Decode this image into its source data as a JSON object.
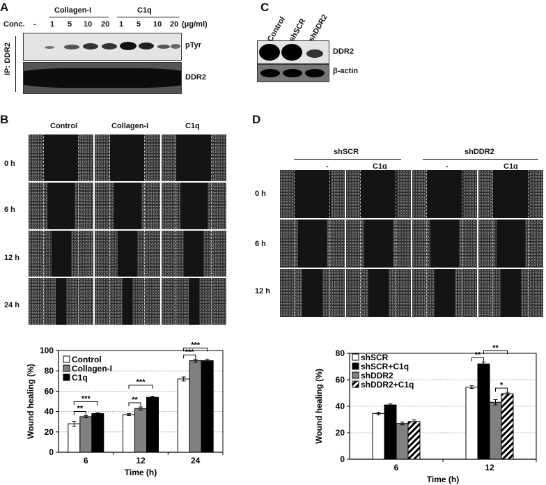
{
  "panels": {
    "a": "A",
    "b": "B",
    "c": "C",
    "d": "D"
  },
  "panel_a": {
    "conc_label": "Conc.",
    "groups": [
      "Collagen-I",
      "C1q"
    ],
    "conc_values": [
      "-",
      "1",
      "5",
      "10",
      "20",
      "1",
      "5",
      "10",
      "20"
    ],
    "unit": "(μg/ml)",
    "ip_label": "IP: DDR2",
    "blot_labels": [
      "pTyr",
      "DDR2"
    ]
  },
  "panel_c": {
    "lanes": [
      "Control",
      "shSCR",
      "shDDR2"
    ],
    "blot_labels": [
      "DDR2",
      "β-actin"
    ]
  },
  "panel_b": {
    "columns": [
      "Control",
      "Collagen-I",
      "C1q"
    ],
    "rows": [
      "0 h",
      "6 h",
      "12 h",
      "24 h"
    ]
  },
  "panel_d": {
    "groups": [
      "shSCR",
      "shDDR2"
    ],
    "subcolumns": [
      "-",
      "C1q",
      "-",
      "C1q"
    ],
    "rows": [
      "0 h",
      "6 h",
      "12 h"
    ]
  },
  "chart_data": [
    {
      "type": "bar",
      "panel": "B",
      "xlabel": "Time (h)",
      "ylabel": "Wound healing (%)",
      "ylim": [
        0,
        100
      ],
      "yticks": [
        "0",
        "20",
        "40",
        "60",
        "80",
        "100"
      ],
      "grid": "horizontal dotted",
      "legend_position": "top-left",
      "categories": [
        "6",
        "12",
        "24"
      ],
      "series": [
        {
          "name": "Control",
          "values": [
            28,
            37,
            72
          ],
          "errors": [
            2.5,
            1,
            2
          ],
          "color": "#ffffff"
        },
        {
          "name": "Collagen-I",
          "values": [
            35,
            43,
            90
          ],
          "errors": [
            1,
            1.5,
            1.5
          ],
          "color": "#808080"
        },
        {
          "name": "C1q",
          "values": [
            38,
            54,
            90
          ],
          "errors": [
            0.8,
            1,
            1.5
          ],
          "color": "#000000"
        }
      ],
      "annotations": [
        {
          "text": "***",
          "group": "6",
          "from": 0,
          "to": 2
        },
        {
          "text": "**",
          "group": "6",
          "from": 0,
          "to": 1
        },
        {
          "text": "***",
          "group": "12",
          "from": 0,
          "to": 2
        },
        {
          "text": "**",
          "group": "12",
          "from": 0,
          "to": 1
        },
        {
          "text": "***",
          "group": "24",
          "from": 0,
          "to": 2
        },
        {
          "text": "***",
          "group": "24",
          "from": 0,
          "to": 1
        }
      ]
    },
    {
      "type": "bar",
      "panel": "D",
      "xlabel": "Time (h)",
      "ylabel": "Wound healing (%)",
      "ylim": [
        0,
        80
      ],
      "yticks": [
        "0",
        "20",
        "40",
        "60",
        "80"
      ],
      "grid": "horizontal dotted",
      "legend_position": "top-left",
      "categories": [
        "6",
        "12"
      ],
      "series": [
        {
          "name": "shSCR",
          "values": [
            34.5,
            54.5
          ],
          "errors": [
            1,
            1
          ],
          "color": "#ffffff"
        },
        {
          "name": "shSCR+C1q",
          "values": [
            41,
            72
          ],
          "errors": [
            0.8,
            1.5
          ],
          "color": "#000000"
        },
        {
          "name": "shDDR2",
          "values": [
            27,
            43
          ],
          "errors": [
            1,
            2
          ],
          "color": "#808080"
        },
        {
          "name": "shDDR2+C1q",
          "values": [
            28.5,
            49.5
          ],
          "errors": [
            1.2,
            1
          ],
          "color": "hatched"
        }
      ],
      "annotations": [
        {
          "text": "**",
          "group": "12",
          "from": 0,
          "to": 1
        },
        {
          "text": "**",
          "group": "12",
          "from": 1,
          "to": 3
        },
        {
          "text": "*",
          "group": "12",
          "from": 2,
          "to": 3
        }
      ]
    }
  ]
}
